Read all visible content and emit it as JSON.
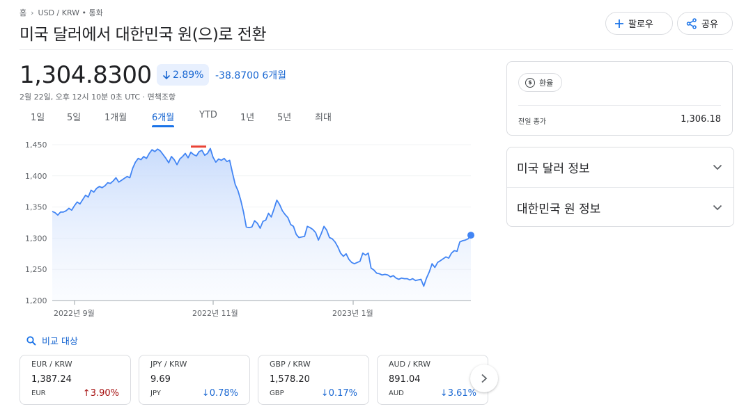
{
  "breadcrumb": {
    "home": "홈",
    "sep": "›",
    "path": "USD / KRW • 통화"
  },
  "title": "미국 달러에서 대한민국 원(으)로 전환",
  "actions": {
    "follow_label": "팔로우",
    "share_label": "공유"
  },
  "quote": {
    "price": "1,304.8300",
    "change_percent": "2.89%",
    "change_abs": "-38.8700 6개월",
    "timestamp": "2월 22일, 오후 12시 10분 0초 UTC · 면책조항"
  },
  "ranges": [
    "1일",
    "5일",
    "1개월",
    "6개월",
    "YTD",
    "1년",
    "5년",
    "최대"
  ],
  "active_range": "6개월",
  "chart_data": {
    "type": "area",
    "y_ticks": [
      "1,450",
      "1,400",
      "1,350",
      "1,300",
      "1,250",
      "1,200"
    ],
    "x_ticks": [
      "2022년 9월",
      "2022년 11월",
      "2023년 1월"
    ],
    "ylim": [
      1200,
      1450
    ],
    "values": [
      1343,
      1341,
      1337,
      1342,
      1342,
      1344,
      1348,
      1345,
      1352,
      1358,
      1355,
      1362,
      1369,
      1366,
      1377,
      1374,
      1380,
      1383,
      1381,
      1384,
      1389,
      1388,
      1392,
      1397,
      1390,
      1393,
      1396,
      1399,
      1397,
      1412,
      1422,
      1428,
      1426,
      1431,
      1428,
      1436,
      1442,
      1439,
      1443,
      1440,
      1434,
      1428,
      1421,
      1431,
      1426,
      1418,
      1427,
      1431,
      1436,
      1429,
      1438,
      1434,
      1432,
      1439,
      1441,
      1433,
      1436,
      1444,
      1430,
      1422,
      1427,
      1425,
      1428,
      1423,
      1425,
      1405,
      1386,
      1376,
      1361,
      1342,
      1318,
      1317,
      1318,
      1328,
      1324,
      1316,
      1327,
      1329,
      1340,
      1334,
      1347,
      1361,
      1354,
      1344,
      1338,
      1333,
      1322,
      1319,
      1306,
      1301,
      1302,
      1303,
      1319,
      1317,
      1314,
      1309,
      1297,
      1307,
      1319,
      1313,
      1301,
      1299,
      1294,
      1286,
      1276,
      1271,
      1275,
      1266,
      1261,
      1259,
      1261,
      1263,
      1276,
      1273,
      1276,
      1252,
      1249,
      1244,
      1243,
      1241,
      1242,
      1241,
      1238,
      1240,
      1236,
      1234,
      1236,
      1235,
      1235,
      1233,
      1235,
      1232,
      1233,
      1234,
      1223,
      1236,
      1246,
      1259,
      1253,
      1261,
      1264,
      1267,
      1270,
      1268,
      1276,
      1280,
      1279,
      1294,
      1296,
      1297,
      1299,
      1304.83
    ],
    "high_marker_value": 1447
  },
  "compare": {
    "label": "비교 대상"
  },
  "cards": [
    {
      "pair": "EUR / KRW",
      "rate": "1,387.24",
      "code": "EUR",
      "change": "3.90%",
      "direction": "up",
      "arrow": "↑"
    },
    {
      "pair": "JPY / KRW",
      "rate": "9.69",
      "code": "JPY",
      "change": "0.78%",
      "direction": "down",
      "arrow": "↓"
    },
    {
      "pair": "GBP / KRW",
      "rate": "1,578.20",
      "code": "GBP",
      "change": "0.17%",
      "direction": "down",
      "arrow": "↓"
    },
    {
      "pair": "AUD / KRW",
      "rate": "891.04",
      "code": "AUD",
      "change": "3.61%",
      "direction": "down",
      "arrow": "↓"
    }
  ],
  "side": {
    "chip_label": "환율",
    "chip_icon": "$",
    "prev_close_label": "전일 종가",
    "prev_close_value": "1,306.18"
  },
  "accordion": [
    "미국 달러 정보",
    "대한민국 원 정보"
  ],
  "colors": {
    "accent": "#1a73e8",
    "down": "#1967d2",
    "up": "#a50e0e",
    "line": "#4285f4",
    "marker": "#ea4335"
  }
}
